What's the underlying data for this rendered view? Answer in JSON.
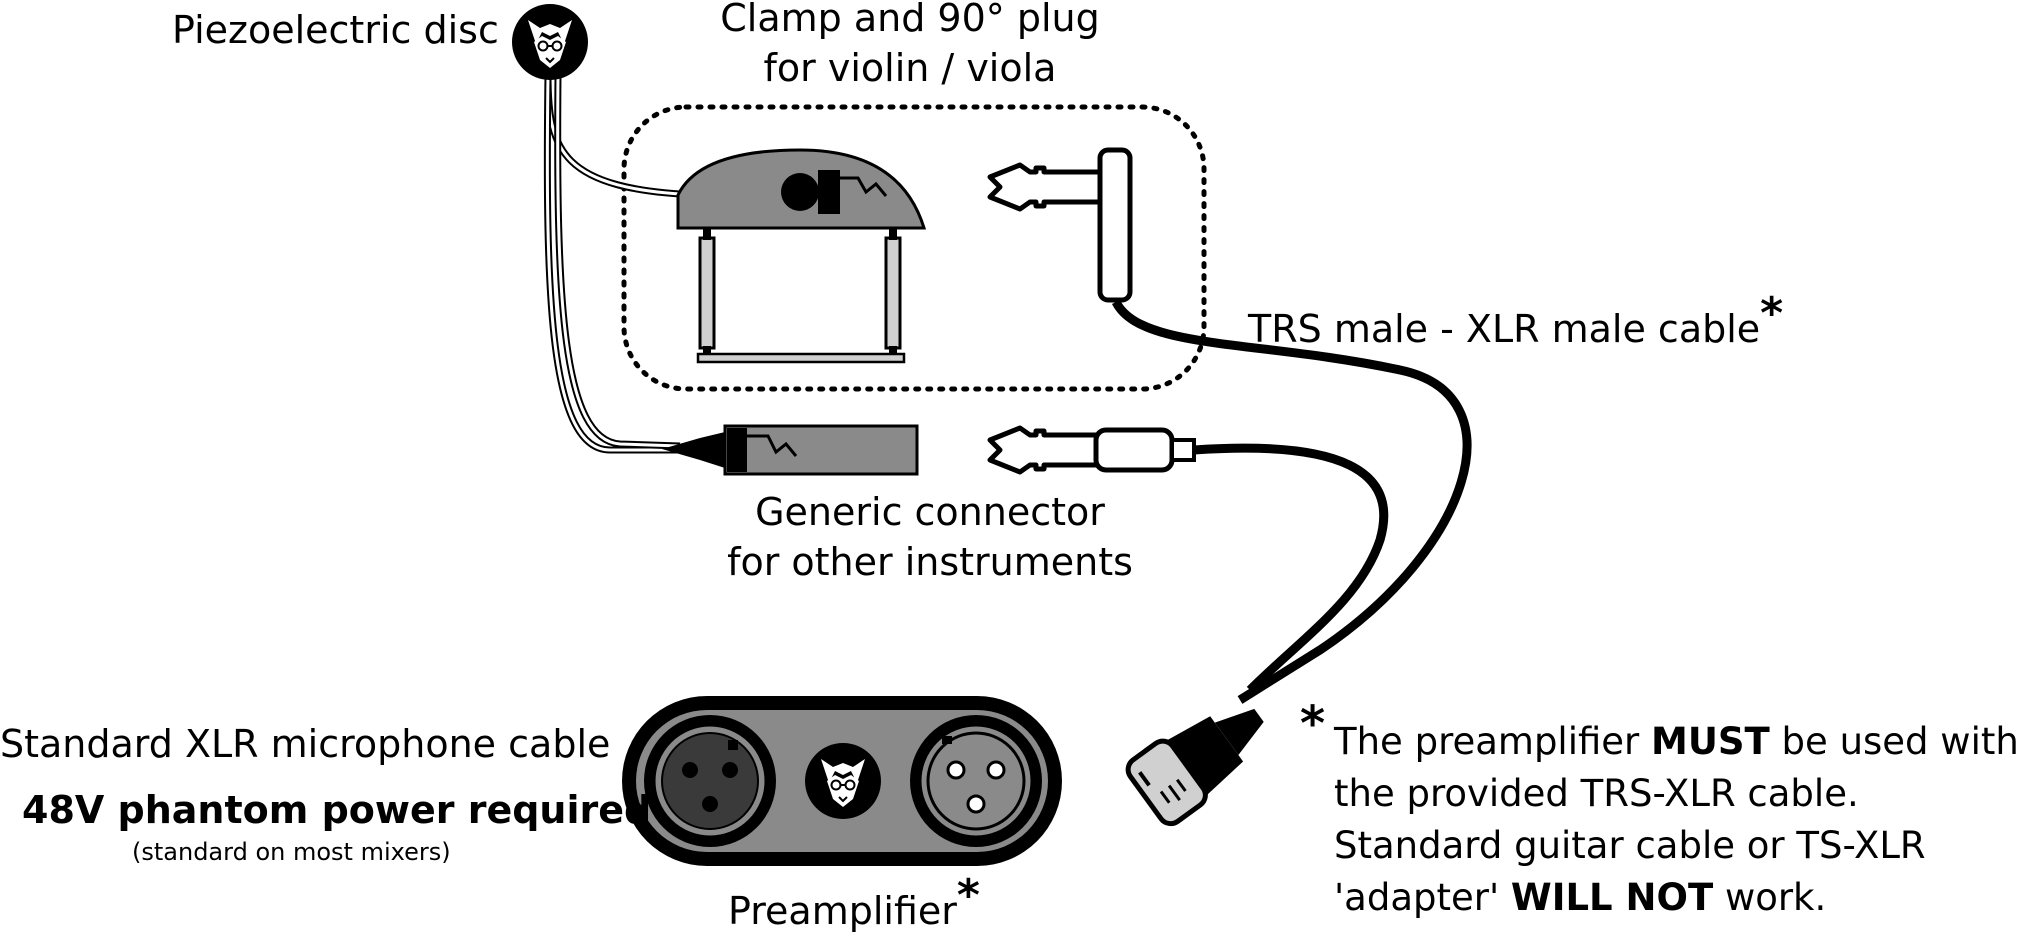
{
  "labels": {
    "piezo": "Piezoelectric disc",
    "clamp_line1": "Clamp and 90° plug",
    "clamp_line2": "for violin / viola",
    "trs_cable": "TRS male - XLR male cable",
    "generic_line1": "Generic connector",
    "generic_line2": "for other instruments",
    "xlr_cable": "Standard XLR microphone cable",
    "phantom": "48V phantom power required",
    "phantom_note": "(standard on most mixers)",
    "preamp": "Preamplifier",
    "asterisk": "*"
  },
  "note": {
    "line1_a": "The preamplifier ",
    "line1_b": "MUST",
    "line1_c": " be used with",
    "line2": "the provided TRS-XLR cable.",
    "line3": "Standard guitar cable or TS-XLR",
    "line4_a": "'adapter' ",
    "line4_b": "WILL NOT",
    "line4_c": " work."
  },
  "colors": {
    "grey_fill": "#8a8a8a",
    "dark_fill": "#3a3a3a",
    "light_fill": "#d0d0d0",
    "black": "#000000"
  },
  "icons": [
    "wolf-logo-icon",
    "wolf-logo-icon"
  ]
}
